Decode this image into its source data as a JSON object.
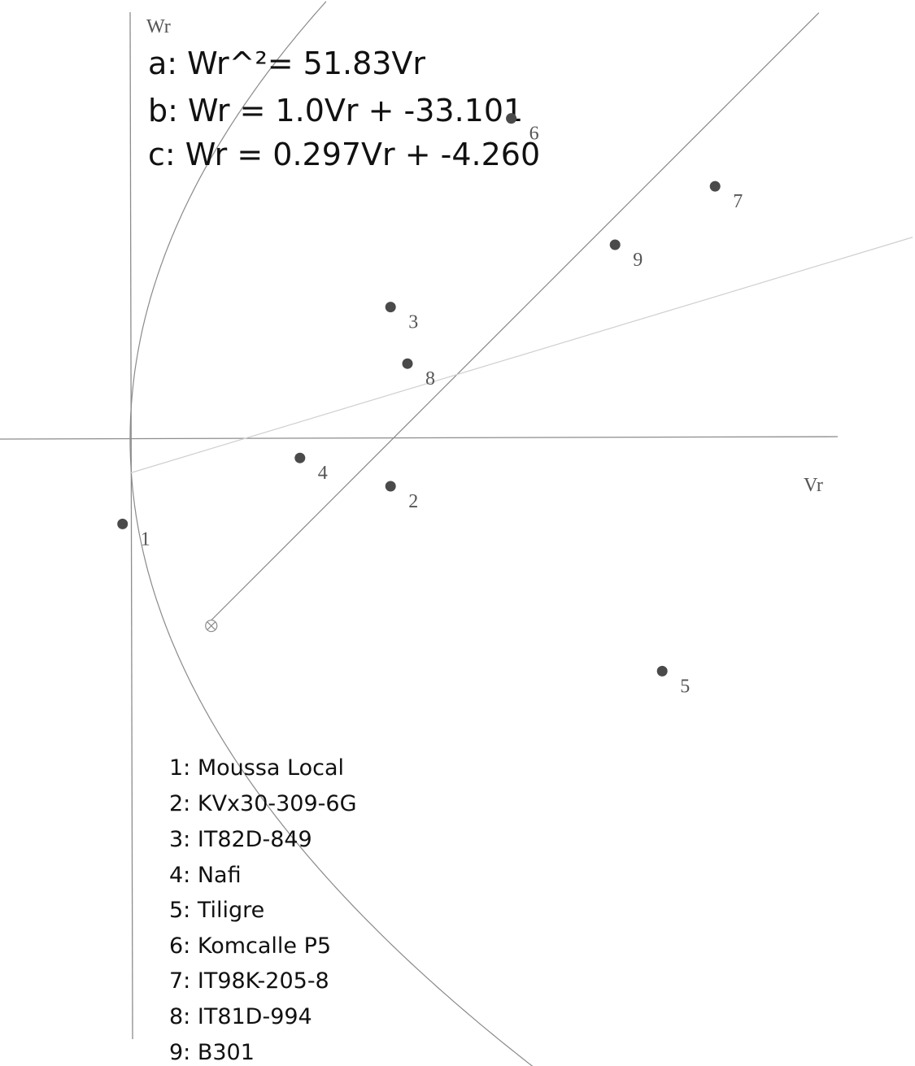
{
  "chart_data": {
    "type": "scatter",
    "xlabel": "Vr",
    "ylabel": "Wr",
    "equations": [
      "a: Wr^²= 51.83Vr",
      "b: Wr = 1.0Vr + -33.101",
      "c: Wr = 0.297Vr + -4.260"
    ],
    "points": [
      {
        "label": "1",
        "vr": -0.4,
        "wr": -4.5
      },
      {
        "label": "2",
        "vr": 13.8,
        "wr": -2.5
      },
      {
        "label": "3",
        "vr": 13.8,
        "wr": 7.0
      },
      {
        "label": "4",
        "vr": 9.0,
        "wr": -1.0
      },
      {
        "label": "5",
        "vr": 28.2,
        "wr": -12.3
      },
      {
        "label": "6",
        "vr": 20.2,
        "wr": 17.0
      },
      {
        "label": "7",
        "vr": 31.0,
        "wr": 13.4
      },
      {
        "label": "8",
        "vr": 14.7,
        "wr": 4.0
      },
      {
        "label": "9",
        "vr": 25.7,
        "wr": 10.3
      }
    ],
    "legend": [
      "1: Moussa Local",
      "2: KVx30-309-6G",
      "3: IT82D-849",
      "4: Nafi",
      "5: Tiligre",
      "6: Komcalle P5",
      "7: IT98K-205-8",
      "8: IT81D-994",
      "9: B301"
    ],
    "xlim": [
      -6.9,
      37.4
    ],
    "ylim": [
      -33.0,
      23.5
    ]
  }
}
